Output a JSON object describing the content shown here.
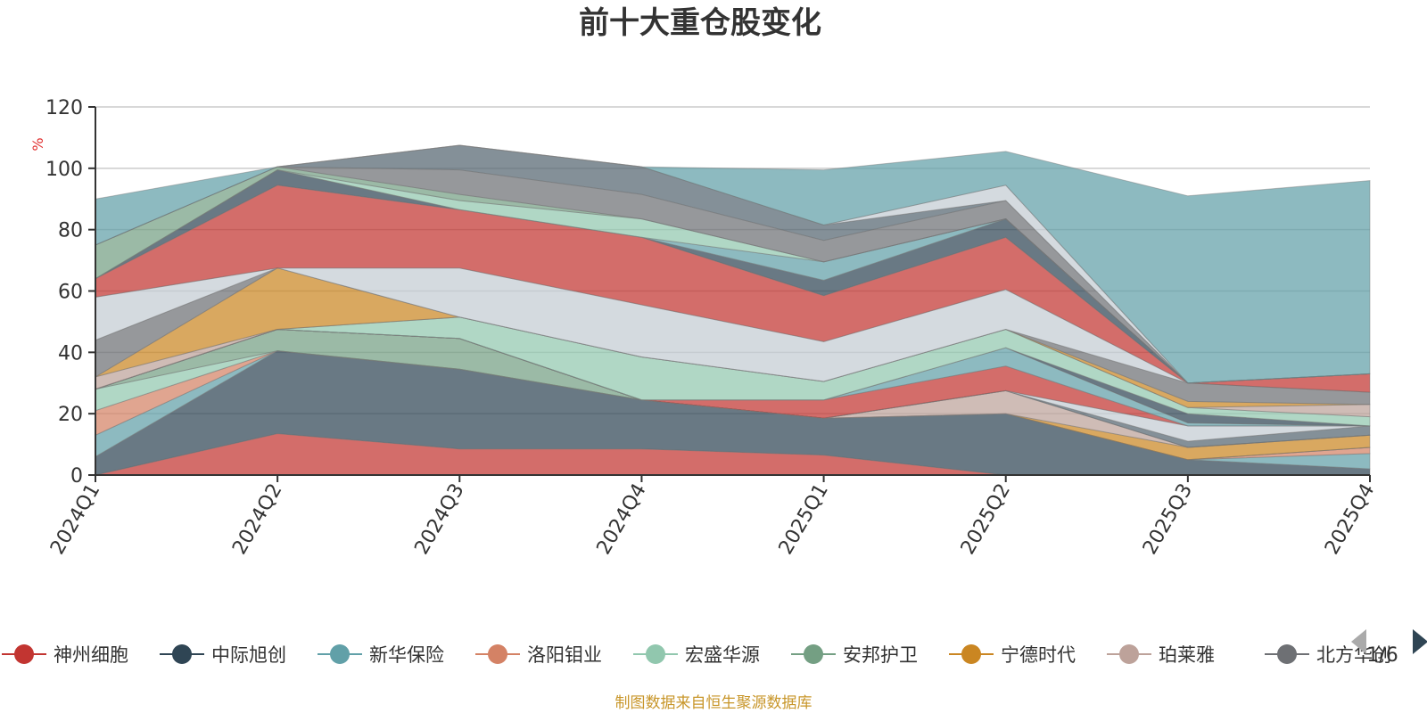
{
  "colors": {
    "title": "#333333",
    "axis": "#333333",
    "grid": "#cccccc",
    "unit": "#e03030",
    "source": "#c8962a",
    "pager_active": "#2f4554",
    "pager_inactive": "#aaaaaa"
  },
  "legend": {
    "pager_text": "1/6",
    "prev_icon": "triangle-left",
    "next_icon": "triangle-right"
  },
  "source_note": "制图数据来自恒生聚源数据库",
  "chart_data": {
    "type": "area",
    "title": "前十大重仓股变化",
    "ylabel": "%",
    "ylim": [
      0,
      120
    ],
    "yticks": [
      0,
      20,
      40,
      60,
      80,
      100,
      120
    ],
    "stacked": true,
    "x": [
      "2024Q1",
      "2024Q2",
      "2024Q3",
      "2024Q4",
      "2025Q1",
      "2025Q2",
      "2025Q3",
      "2025Q4"
    ],
    "grid": true,
    "series": [
      {
        "name": "神州细胞",
        "color": "#c23531",
        "values": [
          0,
          13.5,
          8.5,
          8.5,
          6.5,
          0,
          0,
          0
        ]
      },
      {
        "name": "中际旭创",
        "color": "#2f4554",
        "values": [
          6,
          27,
          26,
          16,
          12,
          20,
          5,
          2
        ]
      },
      {
        "name": "新华保险",
        "color": "#61a0a8",
        "values": [
          7,
          0,
          0,
          0,
          0,
          0,
          0,
          5
        ]
      },
      {
        "name": "洛阳钼业",
        "color": "#d48265",
        "values": [
          8,
          0,
          0,
          0,
          0,
          0,
          0,
          2
        ]
      },
      {
        "name": "宏盛华源",
        "color": "#91c7ae",
        "values": [
          7,
          0,
          0,
          0,
          0,
          0,
          0,
          0
        ]
      },
      {
        "name": "安邦护卫",
        "color": "#749f83",
        "values": [
          0,
          7,
          10,
          0,
          0,
          0,
          0,
          0
        ]
      },
      {
        "name": "宁德时代",
        "color": "#ca8622",
        "values": [
          0,
          0,
          0,
          0,
          0,
          0,
          4,
          4
        ]
      },
      {
        "name": "珀莱雅",
        "color": "#bda29a",
        "values": [
          0,
          0,
          0,
          0,
          0,
          7.5,
          0,
          0
        ]
      },
      {
        "name": "北方华创",
        "color": "#6e7074",
        "values": [
          0,
          0,
          0,
          0,
          0,
          0,
          0,
          0
        ]
      },
      {
        "name": "",
        "color": "#546570",
        "values": [
          0,
          0,
          0,
          0,
          0,
          0,
          2,
          3
        ]
      },
      {
        "name": "",
        "color": "#c4ccd3",
        "values": [
          0,
          0,
          0,
          0,
          0,
          0,
          5,
          0
        ]
      },
      {
        "name": "",
        "color": "#c23531",
        "values": [
          0,
          0,
          0,
          0,
          6,
          8,
          0,
          0
        ]
      },
      {
        "name": "",
        "color": "#61a0a8",
        "values": [
          0,
          0,
          0,
          0,
          0,
          6,
          1,
          0
        ]
      },
      {
        "name": "",
        "color": "#2f4554",
        "values": [
          0,
          0,
          0,
          0,
          0,
          0,
          3,
          0
        ]
      },
      {
        "name": "",
        "color": "#91c7ae",
        "values": [
          0,
          0,
          7,
          14,
          6,
          6,
          2,
          3
        ]
      },
      {
        "name": "",
        "color": "#bda29a",
        "values": [
          4,
          0,
          0,
          0,
          0,
          0,
          0,
          4
        ]
      },
      {
        "name": "",
        "color": "#ca8622",
        "values": [
          0,
          20,
          0,
          0,
          0,
          0,
          2,
          0
        ]
      },
      {
        "name": "",
        "color": "#6e7074",
        "values": [
          12,
          0,
          0,
          0,
          0,
          0,
          6,
          4
        ]
      },
      {
        "name": "",
        "color": "#c4ccd3",
        "values": [
          14,
          0,
          16,
          17,
          13,
          13,
          0,
          0
        ]
      },
      {
        "name": "",
        "color": "#c23531",
        "values": [
          6,
          27,
          19,
          22,
          15,
          17,
          0,
          6
        ]
      },
      {
        "name": "",
        "color": "#2f4554",
        "values": [
          0,
          5,
          0,
          0,
          5,
          6,
          0,
          0
        ]
      },
      {
        "name": "",
        "color": "#61a0a8",
        "values": [
          0,
          0,
          0,
          0,
          6,
          0,
          0,
          0
        ]
      },
      {
        "name": "",
        "color": "#91c7ae",
        "values": [
          0,
          0,
          3,
          6,
          0,
          0,
          0,
          0
        ]
      },
      {
        "name": "",
        "color": "#749f83",
        "values": [
          11,
          1,
          2,
          0,
          0,
          0,
          0,
          0
        ]
      },
      {
        "name": "",
        "color": "#6e7074",
        "values": [
          0,
          0,
          8,
          8,
          7,
          6,
          0,
          0
        ]
      },
      {
        "name": "",
        "color": "#546570",
        "values": [
          0,
          0,
          8,
          9,
          5,
          0,
          0,
          0
        ]
      },
      {
        "name": "",
        "color": "#c4ccd3",
        "values": [
          0,
          0,
          0,
          0,
          0,
          5,
          0,
          0
        ]
      },
      {
        "name": "",
        "color": "#61a0a8",
        "values": [
          15,
          0,
          0,
          0,
          18,
          11,
          61,
          63
        ]
      }
    ]
  }
}
